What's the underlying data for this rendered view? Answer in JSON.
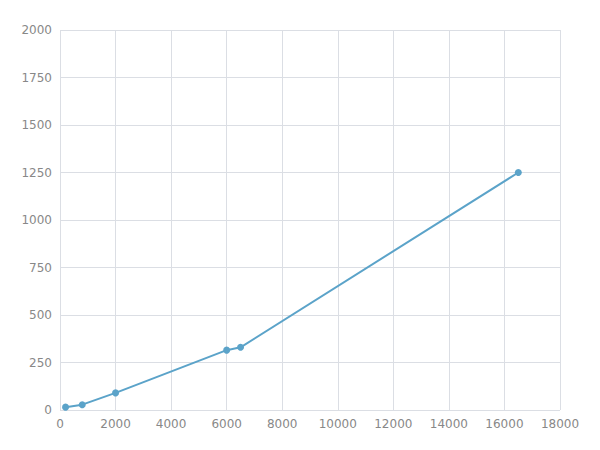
{
  "chart_data": {
    "type": "line",
    "x": [
      200,
      800,
      2000,
      6000,
      6500,
      16500
    ],
    "values": [
      15,
      28,
      90,
      315,
      330,
      1250
    ],
    "color": "#5ba3c9",
    "marker": "circle",
    "xlim": [
      0,
      18000
    ],
    "ylim": [
      0,
      2000
    ],
    "xticks": [
      0,
      2000,
      4000,
      6000,
      8000,
      10000,
      12000,
      14000,
      16000,
      18000
    ],
    "yticks": [
      0,
      250,
      500,
      750,
      1000,
      1250,
      1500,
      1750,
      2000
    ],
    "grid": true
  }
}
